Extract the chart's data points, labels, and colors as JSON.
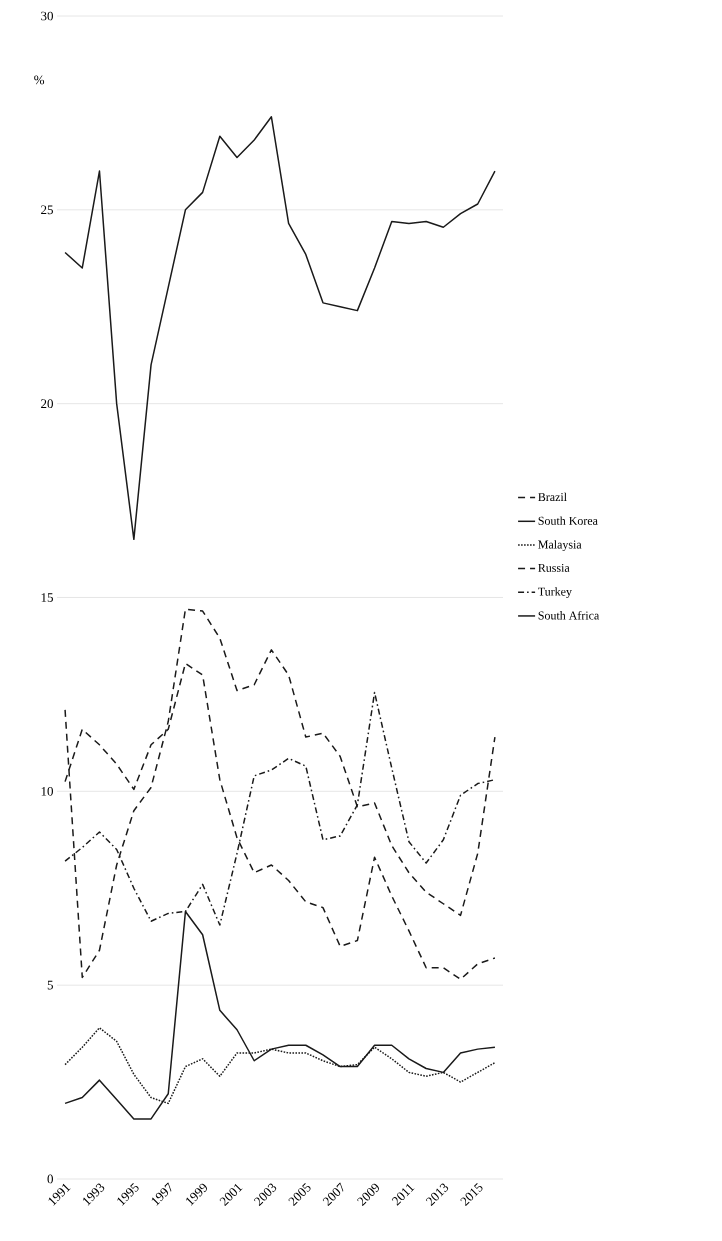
{
  "chart_data": {
    "type": "line",
    "ylabel": "%",
    "categories": [
      "1991",
      null,
      "1993",
      null,
      "1995",
      null,
      "1997",
      null,
      "1999",
      null,
      "2001",
      null,
      "2003",
      null,
      "2005",
      null,
      "2007",
      null,
      "2009",
      null,
      "2011",
      null,
      "2013",
      null,
      "2015",
      null
    ],
    "series": [
      {
        "name": "Brazil",
        "color": "#1a1a1a",
        "line_style": "dashed",
        "values": [
          12.1,
          5.2,
          5.9,
          8.1,
          9.5,
          10.1,
          11.8,
          14.7,
          14.65,
          13.95,
          12.6,
          12.75,
          13.65,
          13.0,
          11.4,
          11.5,
          10.9,
          9.6,
          9.7,
          8.6,
          7.9,
          7.4,
          7.1,
          6.8,
          8.4,
          11.4
        ]
      },
      {
        "name": "South Korea",
        "color": "#1a1a1a",
        "line_style": "solid",
        "values": [
          1.95,
          2.1,
          2.55,
          2.05,
          1.55,
          1.55,
          2.2,
          6.9,
          6.3,
          4.35,
          3.85,
          3.05,
          3.35,
          3.45,
          3.45,
          3.2,
          2.9,
          2.9,
          3.45,
          3.45,
          3.1,
          2.85,
          2.75,
          3.25,
          3.35,
          3.4
        ]
      },
      {
        "name": "Malaysia",
        "color": "#1a1a1a",
        "line_style": "dotted",
        "values": [
          2.95,
          3.4,
          3.9,
          3.55,
          2.7,
          2.1,
          1.95,
          2.9,
          3.1,
          2.65,
          3.25,
          3.25,
          3.35,
          3.25,
          3.25,
          3.05,
          2.9,
          2.95,
          3.4,
          3.1,
          2.75,
          2.65,
          2.75,
          2.5,
          2.75,
          3.0
        ]
      },
      {
        "name": "Russia",
        "color": "#1a1a1a",
        "line_style": "dashed",
        "values": [
          10.25,
          11.6,
          11.2,
          10.7,
          10.05,
          11.2,
          11.6,
          13.3,
          13.0,
          10.3,
          8.8,
          7.9,
          8.1,
          7.7,
          7.15,
          7.0,
          6.0,
          6.15,
          8.3,
          7.3,
          6.4,
          5.45,
          5.45,
          5.15,
          5.55,
          5.7
        ]
      },
      {
        "name": "Turkey",
        "color": "#1a1a1a",
        "line_style": "dashdot",
        "values": [
          8.2,
          8.55,
          8.95,
          8.5,
          7.5,
          6.65,
          6.85,
          6.9,
          7.6,
          6.55,
          8.4,
          10.4,
          10.55,
          10.85,
          10.65,
          8.75,
          8.85,
          9.65,
          12.55,
          10.6,
          8.7,
          8.15,
          8.75,
          9.9,
          10.2,
          10.3
        ]
      },
      {
        "name": "South Africa",
        "color": "#1a1a1a",
        "line_style": "solid",
        "values": [
          23.9,
          23.5,
          26.0,
          20.0,
          16.5,
          21.0,
          23.0,
          25.0,
          25.45,
          26.9,
          26.35,
          26.8,
          27.4,
          24.65,
          23.85,
          22.6,
          22.5,
          22.4,
          23.5,
          24.7,
          24.65,
          24.7,
          24.55,
          24.9,
          25.15,
          26.0
        ]
      }
    ],
    "ylim": [
      0,
      30
    ],
    "yticks": [
      0,
      5,
      10,
      15,
      20,
      25,
      30
    ],
    "grid": "y",
    "legend": "right",
    "marker": "none"
  }
}
